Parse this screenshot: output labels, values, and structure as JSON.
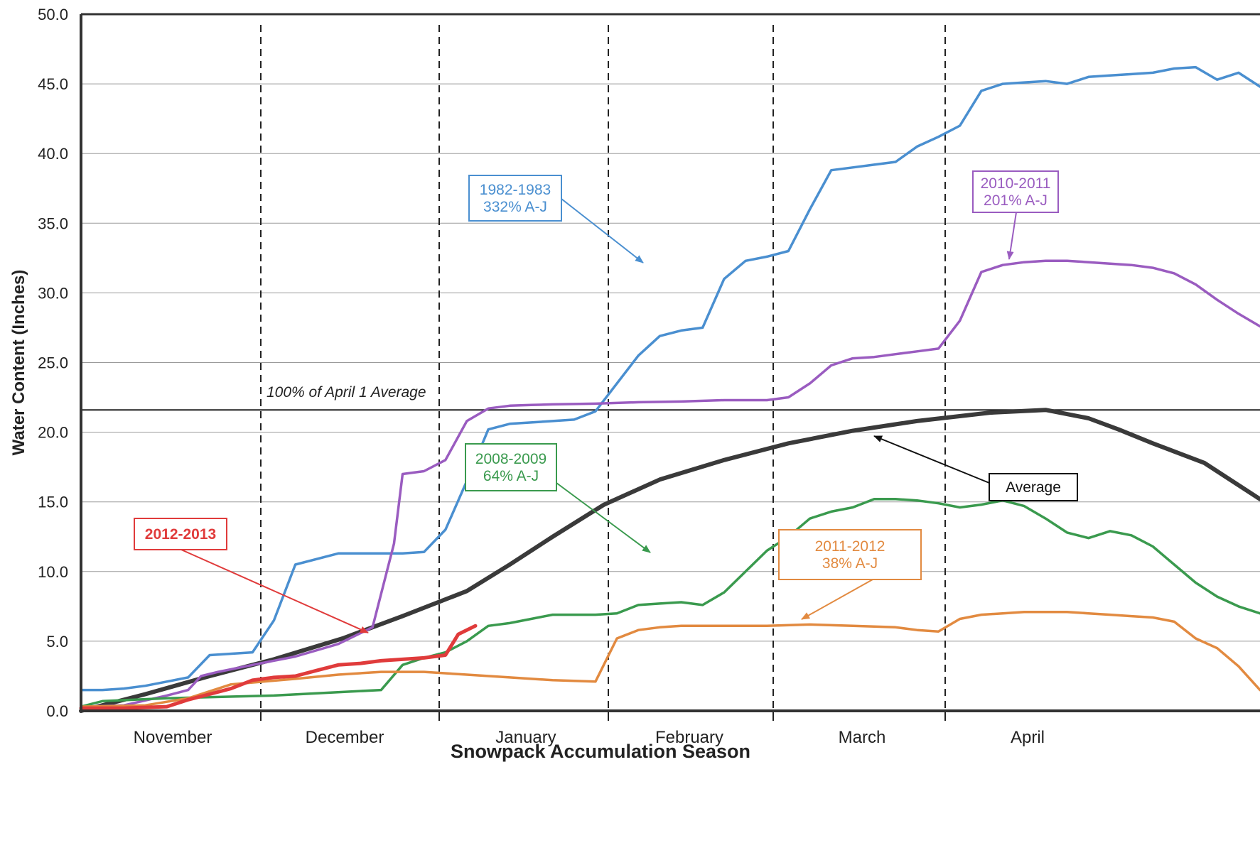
{
  "chart_data": {
    "type": "line",
    "xlabel": "Snowpack Accumulation Season",
    "ylabel": "Water Content (Inches)",
    "ylim": [
      0,
      50
    ],
    "yticks": [
      "0.0",
      "5.0",
      "10.0",
      "15.0",
      "20.0",
      "25.0",
      "30.0",
      "35.0",
      "40.0",
      "45.0",
      "50.0"
    ],
    "grid": true,
    "months": [
      "November",
      "December",
      "January",
      "February",
      "March",
      "April"
    ],
    "reference_line": {
      "label": "100% of April 1 Average",
      "value": 21.6
    },
    "series": [
      {
        "name": "Average",
        "color": "#3a3a3a",
        "x": [
          0,
          15,
          30,
          45,
          61,
          75,
          90,
          100,
          110,
          122,
          135,
          150,
          165,
          180,
          195,
          212,
          225,
          235,
          242,
          250,
          262,
          275
        ],
        "y": [
          0,
          1.2,
          2.5,
          3.7,
          5.2,
          6.8,
          8.6,
          10.5,
          12.5,
          14.8,
          16.6,
          18.0,
          19.2,
          20.1,
          20.8,
          21.4,
          21.6,
          21.0,
          20.2,
          19.2,
          17.8,
          15.2
        ]
      },
      {
        "name": "1982-1983",
        "color": "#4a8fd0",
        "x": [
          0,
          5,
          10,
          15,
          20,
          25,
          30,
          40,
          45,
          50,
          60,
          75,
          80,
          85,
          90,
          95,
          100,
          105,
          110,
          115,
          120,
          125,
          130,
          135,
          140,
          145,
          150,
          155,
          160,
          165,
          170,
          175,
          180,
          185,
          190,
          195,
          200,
          205,
          210,
          215,
          220,
          225,
          230,
          235,
          240,
          245,
          250,
          255,
          260,
          265,
          270,
          275
        ],
        "y": [
          1.5,
          1.5,
          1.6,
          1.8,
          2.1,
          2.4,
          4.0,
          4.2,
          6.5,
          10.5,
          11.3,
          11.3,
          11.4,
          13,
          16.5,
          20.2,
          20.6,
          20.7,
          20.8,
          20.9,
          21.5,
          23.5,
          25.5,
          26.9,
          27.3,
          27.5,
          31,
          32.3,
          32.6,
          33,
          36,
          38.8,
          39,
          39.2,
          39.4,
          40.5,
          41.2,
          42,
          44.5,
          45,
          45.1,
          45.2,
          45.0,
          45.5,
          45.6,
          45.7,
          45.8,
          46.1,
          46.2,
          45.3,
          45.8,
          44.8
        ]
      },
      {
        "name": "2010-2011",
        "color": "#9a5cc0",
        "x": [
          0,
          10,
          20,
          25,
          28,
          32,
          40,
          50,
          60,
          68,
          73,
          75,
          80,
          85,
          90,
          95,
          100,
          105,
          110,
          120,
          130,
          140,
          150,
          160,
          165,
          170,
          175,
          180,
          185,
          190,
          195,
          200,
          205,
          210,
          215,
          220,
          225,
          230,
          235,
          240,
          245,
          250,
          255,
          260,
          265,
          270,
          275
        ],
        "y": [
          0.3,
          0.4,
          1.1,
          1.5,
          2.5,
          2.8,
          3.3,
          3.9,
          4.8,
          6,
          12,
          17,
          17.2,
          18,
          20.8,
          21.7,
          21.9,
          21.95,
          22,
          22.05,
          22.15,
          22.2,
          22.3,
          22.3,
          22.5,
          23.5,
          24.8,
          25.3,
          25.4,
          25.6,
          25.8,
          26,
          28,
          31.5,
          32,
          32.2,
          32.3,
          32.3,
          32.2,
          32.1,
          32.0,
          31.8,
          31.4,
          30.6,
          29.5,
          28.5,
          27.6
        ]
      },
      {
        "name": "2008-2009",
        "color": "#3a9a4e",
        "x": [
          0,
          5,
          20,
          45,
          70,
          75,
          80,
          85,
          90,
          95,
          100,
          105,
          110,
          120,
          125,
          130,
          135,
          140,
          145,
          150,
          155,
          160,
          165,
          170,
          175,
          180,
          185,
          190,
          195,
          200,
          205,
          210,
          215,
          220,
          225,
          230,
          235,
          240,
          245,
          250,
          255,
          260,
          265,
          270,
          275
        ],
        "y": [
          0.3,
          0.7,
          0.9,
          1.1,
          1.5,
          3.3,
          3.8,
          4.2,
          5.0,
          6.1,
          6.3,
          6.6,
          6.9,
          6.9,
          7.0,
          7.6,
          7.7,
          7.8,
          7.6,
          8.5,
          10.0,
          11.5,
          12.5,
          13.8,
          14.3,
          14.6,
          15.2,
          15.2,
          15.1,
          14.9,
          14.6,
          14.8,
          15.1,
          14.7,
          13.8,
          12.8,
          12.4,
          12.9,
          12.6,
          11.8,
          10.5,
          9.2,
          8.2,
          7.5,
          7.0
        ]
      },
      {
        "name": "2011-2012",
        "color": "#e28a40",
        "x": [
          0,
          15,
          25,
          35,
          50,
          60,
          70,
          80,
          90,
          100,
          110,
          120,
          125,
          130,
          135,
          140,
          150,
          160,
          170,
          180,
          190,
          195,
          200,
          205,
          210,
          215,
          220,
          225,
          230,
          235,
          240,
          245,
          250,
          255,
          260,
          265,
          270,
          275
        ],
        "y": [
          0.3,
          0.4,
          0.9,
          1.9,
          2.3,
          2.6,
          2.8,
          2.8,
          2.6,
          2.4,
          2.2,
          2.1,
          5.2,
          5.8,
          6.0,
          6.1,
          6.1,
          6.1,
          6.2,
          6.1,
          6.0,
          5.8,
          5.7,
          6.6,
          6.9,
          7.0,
          7.1,
          7.1,
          7.1,
          7.0,
          6.9,
          6.8,
          6.7,
          6.4,
          5.2,
          4.5,
          3.2,
          1.5
        ]
      },
      {
        "name": "2012-2013",
        "color": "#e03b3b",
        "x": [
          0,
          10,
          20,
          25,
          30,
          35,
          40,
          45,
          50,
          55,
          60,
          65,
          70,
          75,
          80,
          85,
          88,
          92
        ],
        "y": [
          0.2,
          0.2,
          0.3,
          0.8,
          1.2,
          1.6,
          2.2,
          2.4,
          2.5,
          2.9,
          3.3,
          3.4,
          3.6,
          3.7,
          3.8,
          4.0,
          5.5,
          6.1
        ]
      }
    ],
    "annotations": [
      {
        "series": "1982-1983",
        "lines": [
          "1982-1983",
          "332% A-J"
        ],
        "color": "#4a8fd0"
      },
      {
        "series": "2010-2011",
        "lines": [
          "2010-2011",
          "201% A-J"
        ],
        "color": "#9a5cc0"
      },
      {
        "series": "2008-2009",
        "lines": [
          "2008-2009",
          "64% A-J"
        ],
        "color": "#3a9a4e"
      },
      {
        "series": "2011-2012",
        "lines": [
          "2011-2012",
          "38% A-J"
        ],
        "color": "#e28a40"
      },
      {
        "series": "2012-2013",
        "lines": [
          "2012-2013"
        ],
        "color": "#e03b3b"
      },
      {
        "series": "Average",
        "lines": [
          "Average"
        ],
        "color": "#111111"
      }
    ]
  }
}
